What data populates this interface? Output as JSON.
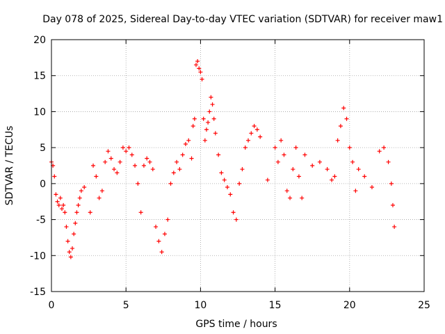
{
  "chart_data": {
    "type": "scatter",
    "title": "Day 078 of 2025, Sidereal Day-to-day VTEC variation (SDTVAR) for receiver maw1",
    "xlabel": "GPS time / hours",
    "ylabel": "SDTVAR / TECUs",
    "xlim": [
      0,
      25
    ],
    "ylim": [
      -15,
      20
    ],
    "xticks": [
      0,
      5,
      10,
      15,
      20,
      25
    ],
    "yticks": [
      -15,
      -10,
      -5,
      0,
      5,
      10,
      15,
      20
    ],
    "xtick_labels": [
      "0",
      "5",
      "10",
      "15",
      "20",
      "25"
    ],
    "ytick_labels": [
      "-15",
      "-10",
      "-5",
      "0",
      "5",
      "10",
      "15",
      "20"
    ],
    "grid": true,
    "marker": "+",
    "series_color": "#ff0000",
    "series": [
      {
        "name": "SDTVAR",
        "x": [
          0.0,
          0.1,
          0.2,
          0.3,
          0.4,
          0.5,
          0.6,
          0.7,
          0.8,
          0.9,
          1.0,
          1.1,
          1.2,
          1.3,
          1.4,
          1.5,
          1.6,
          1.7,
          1.8,
          1.9,
          2.0,
          2.2,
          2.6,
          2.8,
          3.0,
          3.2,
          3.4,
          3.6,
          3.8,
          4.0,
          4.2,
          4.4,
          4.6,
          4.8,
          5.0,
          5.2,
          5.4,
          5.6,
          5.8,
          6.0,
          6.2,
          6.4,
          6.6,
          6.8,
          7.0,
          7.2,
          7.4,
          7.6,
          7.8,
          8.0,
          8.2,
          8.4,
          8.6,
          8.8,
          9.0,
          9.2,
          9.4,
          9.5,
          9.6,
          9.7,
          9.8,
          9.9,
          10.0,
          10.1,
          10.2,
          10.3,
          10.4,
          10.5,
          10.6,
          10.7,
          10.8,
          10.9,
          11.0,
          11.2,
          11.4,
          11.6,
          11.8,
          12.0,
          12.2,
          12.4,
          12.6,
          12.8,
          13.0,
          13.2,
          13.4,
          13.6,
          13.8,
          14.0,
          14.5,
          15.0,
          15.2,
          15.4,
          15.6,
          15.8,
          16.0,
          16.2,
          16.4,
          16.6,
          16.8,
          17.0,
          17.5,
          18.0,
          18.5,
          18.8,
          19.0,
          19.2,
          19.4,
          19.6,
          19.8,
          20.0,
          20.2,
          20.4,
          20.6,
          21.0,
          21.5,
          22.0,
          22.3,
          22.6,
          22.8,
          22.9,
          23.0
        ],
        "y": [
          3.0,
          2.5,
          1.0,
          -1.5,
          -2.5,
          -3.0,
          -2.0,
          -3.5,
          -3.0,
          -4.0,
          -6.0,
          -8.0,
          -9.5,
          -10.2,
          -9.0,
          -7.0,
          -5.5,
          -4.0,
          -3.0,
          -2.0,
          -1.0,
          -0.5,
          -4.0,
          2.5,
          1.0,
          -2.0,
          -1.0,
          3.0,
          4.5,
          3.5,
          2.0,
          1.5,
          3.0,
          5.0,
          4.5,
          5.0,
          4.0,
          2.5,
          0.0,
          -4.0,
          2.5,
          3.5,
          3.0,
          2.0,
          -6.0,
          -8.0,
          -9.5,
          -7.0,
          -5.0,
          0.0,
          1.5,
          3.0,
          2.0,
          4.0,
          5.5,
          6.0,
          3.5,
          8.0,
          9.0,
          16.5,
          17.0,
          16.0,
          15.5,
          14.5,
          9.0,
          6.0,
          7.5,
          8.5,
          10.0,
          12.0,
          11.0,
          9.0,
          7.0,
          4.0,
          1.5,
          0.5,
          -0.5,
          -1.5,
          -4.0,
          -5.0,
          0.0,
          2.0,
          5.0,
          6.0,
          7.0,
          8.0,
          7.5,
          6.5,
          0.5,
          5.0,
          3.0,
          6.0,
          4.0,
          -1.0,
          -2.0,
          2.0,
          5.0,
          1.0,
          -2.0,
          4.0,
          2.5,
          3.0,
          2.0,
          0.5,
          1.0,
          6.0,
          8.0,
          10.5,
          9.0,
          5.0,
          3.0,
          -1.0,
          2.0,
          1.0,
          -0.5,
          4.5,
          5.0,
          3.0,
          0.0,
          -3.0,
          -6.0
        ]
      }
    ]
  }
}
